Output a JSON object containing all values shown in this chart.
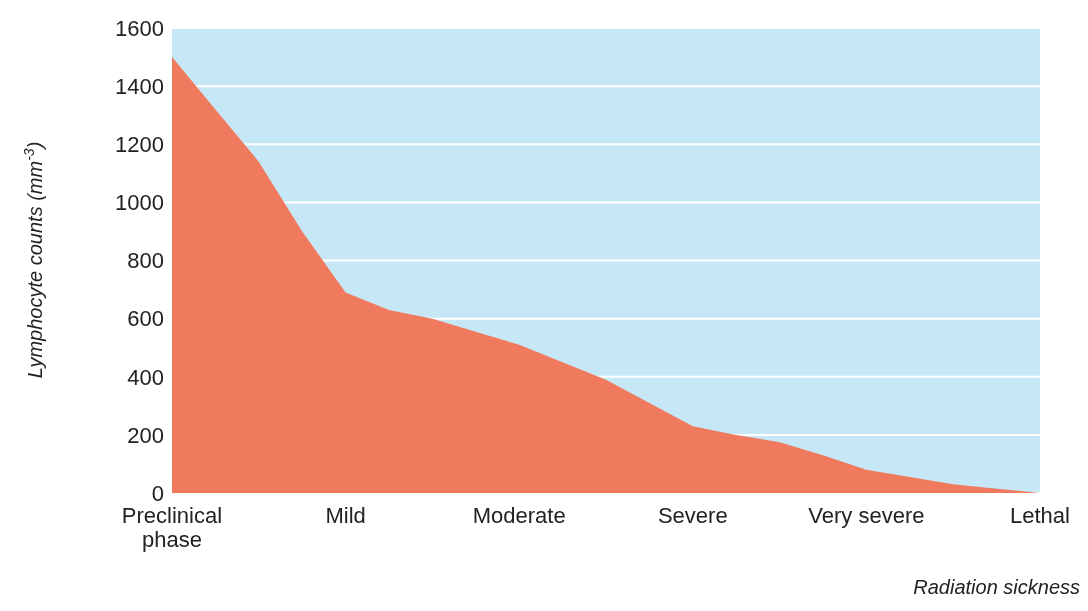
{
  "chart_data": {
    "type": "area",
    "xlabel": "Radiation sickness",
    "ylabel": "Lymphocyte counts (mm$^{-3}$)",
    "categories": [
      "Preclinical phase",
      null,
      null,
      null,
      "Mild",
      null,
      null,
      null,
      "Moderate",
      null,
      null,
      null,
      "Severe",
      null,
      null,
      null,
      "Very severe",
      null,
      null,
      null,
      "Lethal"
    ],
    "series": [
      {
        "color": "#f07a5e",
        "values": [
          1500,
          1320,
          1140,
          900,
          690,
          630,
          600,
          555,
          510,
          450,
          390,
          310,
          230,
          200,
          175,
          130,
          80,
          55,
          30,
          15,
          0
        ]
      }
    ],
    "ylim": [
      0,
      1600
    ],
    "yticks": [
      0,
      200,
      400,
      600,
      800,
      1000,
      1200,
      1400,
      1600
    ],
    "grid": "y"
  }
}
